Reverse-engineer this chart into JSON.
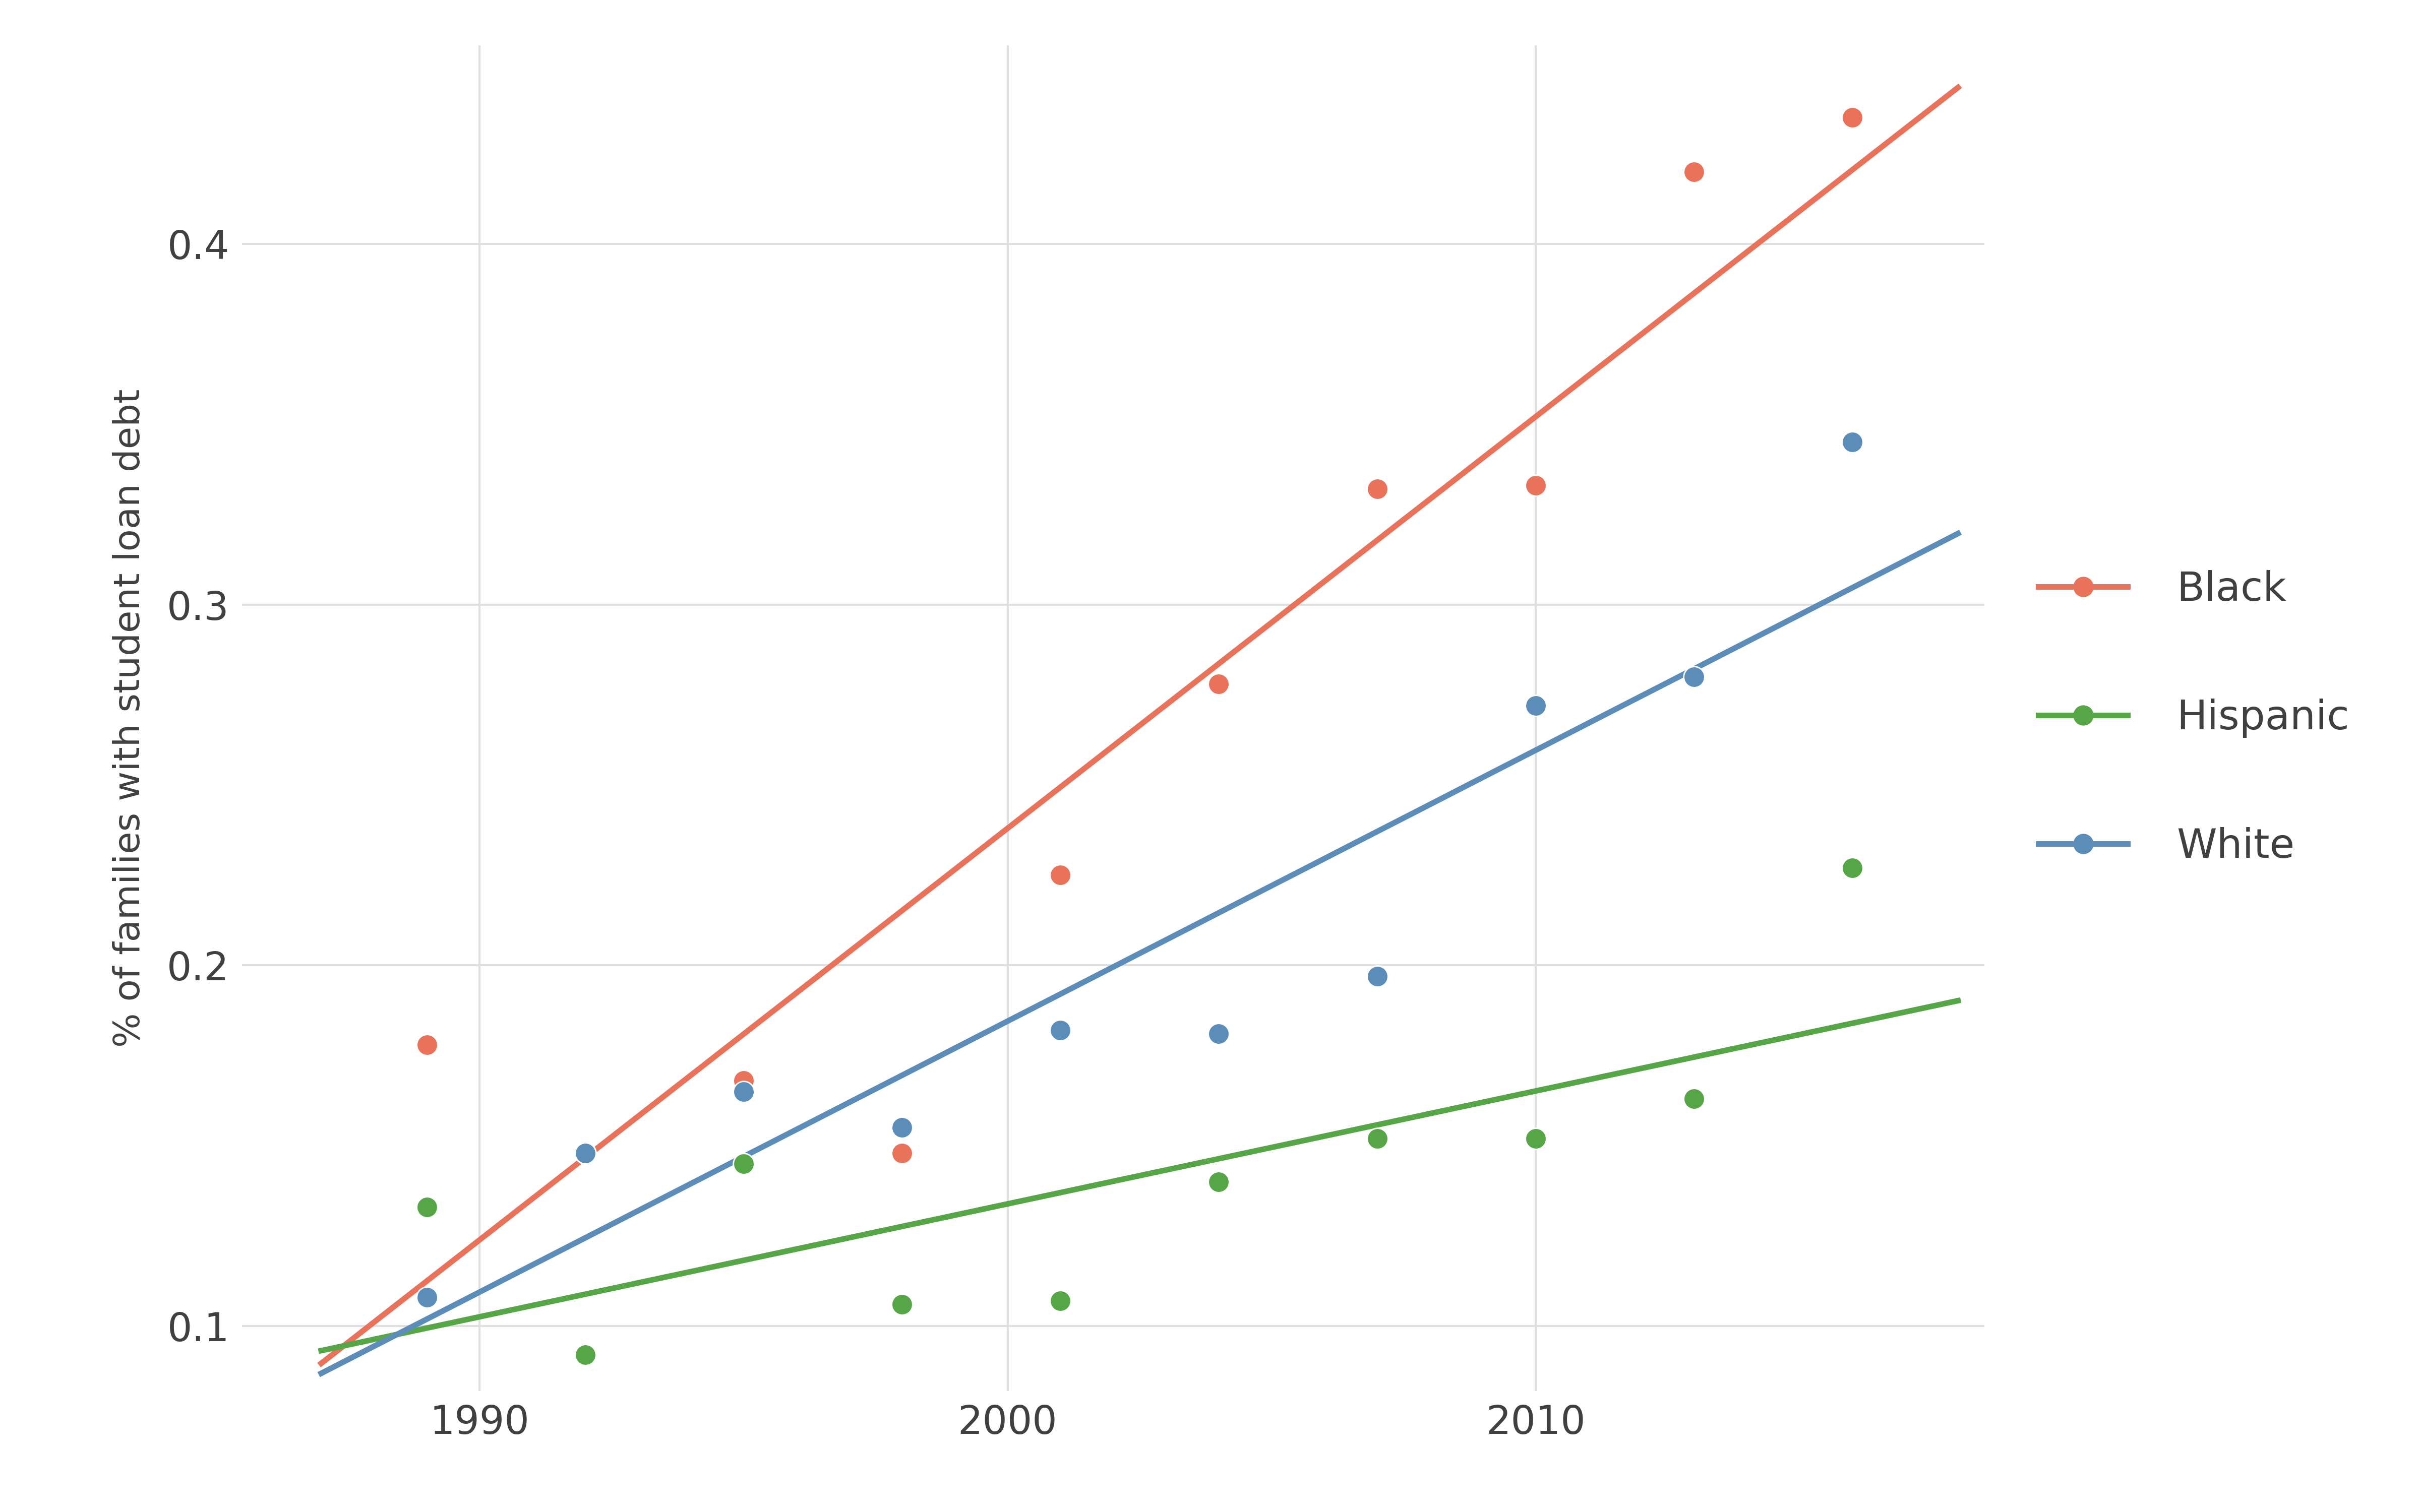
{
  "black_x": [
    1989,
    1992,
    1995,
    1998,
    2001,
    2004,
    2007,
    2010,
    2013,
    2016
  ],
  "black_y": [
    0.178,
    0.148,
    0.168,
    0.148,
    0.225,
    0.278,
    0.332,
    0.333,
    0.42,
    0.435
  ],
  "hispanic_x": [
    1989,
    1992,
    1995,
    1998,
    2001,
    2004,
    2007,
    2010,
    2013,
    2016
  ],
  "hispanic_y": [
    0.133,
    0.092,
    0.145,
    0.106,
    0.107,
    0.14,
    0.152,
    0.152,
    0.163,
    0.227
  ],
  "white_x": [
    1989,
    1992,
    1995,
    1998,
    2001,
    2004,
    2007,
    2010,
    2013,
    2016
  ],
  "white_y": [
    0.108,
    0.148,
    0.165,
    0.155,
    0.182,
    0.181,
    0.197,
    0.272,
    0.28,
    0.345
  ],
  "black_color": "#E8735A",
  "hispanic_color": "#56A547",
  "white_color": "#5B8DB8",
  "bg_color": "#FFFFFF",
  "grid_color": "#E0E0E0",
  "ylabel": "% of families with student loan debt",
  "ylim": [
    0.082,
    0.455
  ],
  "xlim": [
    1985.5,
    2018.5
  ],
  "yticks": [
    0.1,
    0.2,
    0.3,
    0.4
  ],
  "xticks": [
    1990,
    2000,
    2010
  ],
  "marker_size": 900,
  "line_width": 8,
  "tick_label_fontsize": 56,
  "axis_label_fontsize": 52,
  "legend_fontsize": 58
}
